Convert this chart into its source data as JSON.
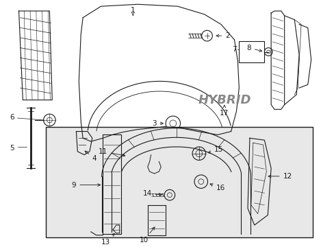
{
  "background_color": "#ffffff",
  "box_bg": "#e8e8e8",
  "line_color": "#1a1a1a",
  "hybrid_color": "#888888",
  "hybrid_text": "HYBRID",
  "label_fs": 7.5,
  "lw": 0.8
}
